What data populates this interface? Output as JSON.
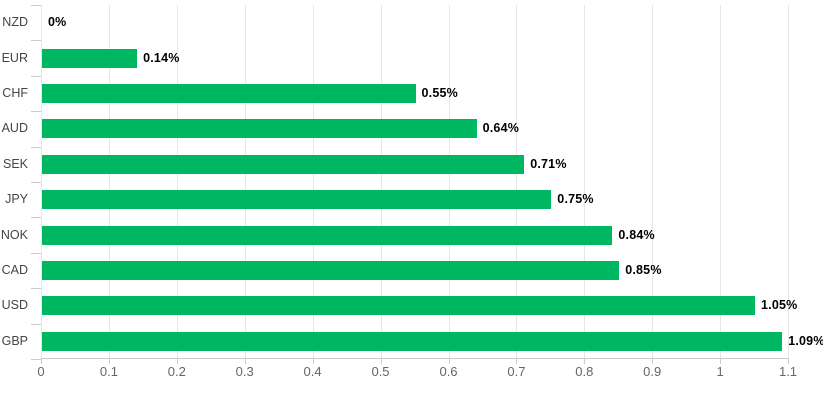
{
  "chart_data": {
    "type": "bar",
    "orientation": "horizontal",
    "title": "",
    "xlabel": "",
    "ylabel": "",
    "categories": [
      "NZD",
      "EUR",
      "CHF",
      "AUD",
      "SEK",
      "JPY",
      "NOK",
      "CAD",
      "USD",
      "GBP"
    ],
    "values": [
      0,
      0.14,
      0.55,
      0.64,
      0.71,
      0.75,
      0.84,
      0.85,
      1.05,
      1.09
    ],
    "data_labels": [
      "0%",
      "0.14%",
      "0.55%",
      "0.64%",
      "0.71%",
      "0.75%",
      "0.84%",
      "0.85%",
      "1.05%",
      "1.09%"
    ],
    "xlim": [
      0,
      1.1
    ],
    "x_tick_labels": [
      "0",
      "0.1",
      "0.2",
      "0.3",
      "0.4",
      "0.5",
      "0.6",
      "0.7",
      "0.8",
      "0.9",
      "1",
      "1.1"
    ],
    "x_tick_values": [
      0,
      0.1,
      0.2,
      0.3,
      0.4,
      0.5,
      0.6,
      0.7,
      0.8,
      0.9,
      1.0,
      1.1
    ],
    "grid": true,
    "legend": "none",
    "colors": {
      "bar": "#00b761",
      "gridline": "#e6e6e6",
      "axis_line": "#cccccc",
      "data_label": "#000000",
      "category_label": "#454545",
      "x_tick_label": "#666666",
      "background": "#ffffff"
    }
  }
}
